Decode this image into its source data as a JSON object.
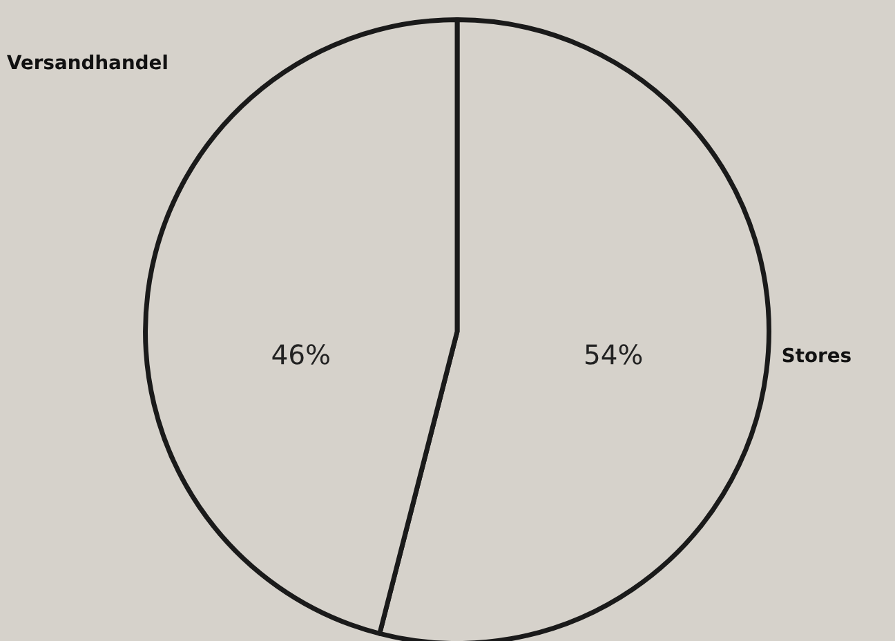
{
  "chart_data": {
    "type": "pie",
    "categories": [
      "Stores",
      "Versandhandel"
    ],
    "values": [
      54,
      46
    ],
    "colors": [
      "#d6d2cb",
      "#d6d2cb"
    ],
    "value_labels": [
      "54%",
      "46%"
    ],
    "legend": false
  }
}
